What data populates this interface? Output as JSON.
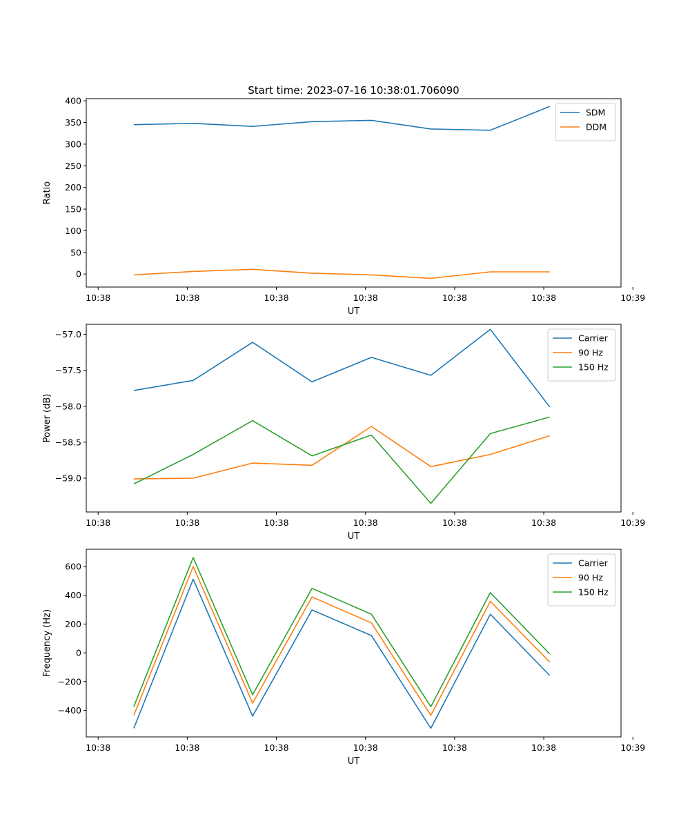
{
  "title": "Start time: 2023-07-16 10:38:01.706090",
  "chart_data": [
    {
      "type": "line",
      "xlabel": "UT",
      "ylabel": "Ratio",
      "x_ticks": [
        "10:38",
        "10:38",
        "10:38",
        "10:38",
        "10:38",
        "10:38",
        "10:39"
      ],
      "y_ticks": [
        "0",
        "50",
        "100",
        "150",
        "200",
        "250",
        "300",
        "350",
        "400"
      ],
      "ylim": [
        -30,
        405
      ],
      "legend": "top-right",
      "series": [
        {
          "name": "SDM",
          "color": "#1f77b4",
          "values": [
            345,
            348,
            341,
            352,
            355,
            335,
            332,
            387
          ]
        },
        {
          "name": "DDM",
          "color": "#ff7f0e",
          "values": [
            -2,
            6,
            11,
            2,
            -2,
            -10,
            5,
            5
          ]
        }
      ]
    },
    {
      "type": "line",
      "xlabel": "UT",
      "ylabel": "Power (dB)",
      "x_ticks": [
        "10:38",
        "10:38",
        "10:38",
        "10:38",
        "10:38",
        "10:38",
        "10:39"
      ],
      "y_ticks": [
        "−59.0",
        "−58.5",
        "−58.0",
        "−57.5",
        "−57.0"
      ],
      "ylim": [
        -59.47,
        -56.86
      ],
      "legend": "top-right",
      "series": [
        {
          "name": "Carrier",
          "color": "#1f77b4",
          "values": [
            -57.78,
            -57.64,
            -57.11,
            -57.66,
            -57.32,
            -57.57,
            -56.93,
            -58.01
          ]
        },
        {
          "name": "90 Hz",
          "color": "#ff7f0e",
          "values": [
            -59.01,
            -59.0,
            -58.79,
            -58.82,
            -58.28,
            -58.84,
            -58.67,
            -58.41
          ]
        },
        {
          "name": "150 Hz",
          "color": "#2ca02c",
          "values": [
            -59.08,
            -58.67,
            -58.2,
            -58.69,
            -58.4,
            -59.35,
            -58.38,
            -58.15
          ]
        }
      ]
    },
    {
      "type": "line",
      "xlabel": "UT",
      "ylabel": "Frequency (Hz)",
      "x_ticks": [
        "10:38",
        "10:38",
        "10:38",
        "10:38",
        "10:38",
        "10:38",
        "10:39"
      ],
      "y_ticks": [
        "−400",
        "−200",
        "0",
        "200",
        "400",
        "600"
      ],
      "ylim": [
        -585,
        720
      ],
      "legend": "top-right",
      "series": [
        {
          "name": "Carrier",
          "color": "#1f77b4",
          "values": [
            -525,
            512,
            -440,
            298,
            120,
            -525,
            268,
            -158
          ]
        },
        {
          "name": "90 Hz",
          "color": "#ff7f0e",
          "values": [
            -435,
            600,
            -350,
            388,
            208,
            -435,
            358,
            -65
          ]
        },
        {
          "name": "150 Hz",
          "color": "#2ca02c",
          "values": [
            -375,
            662,
            -292,
            448,
            268,
            -375,
            418,
            -8
          ]
        }
      ]
    }
  ]
}
